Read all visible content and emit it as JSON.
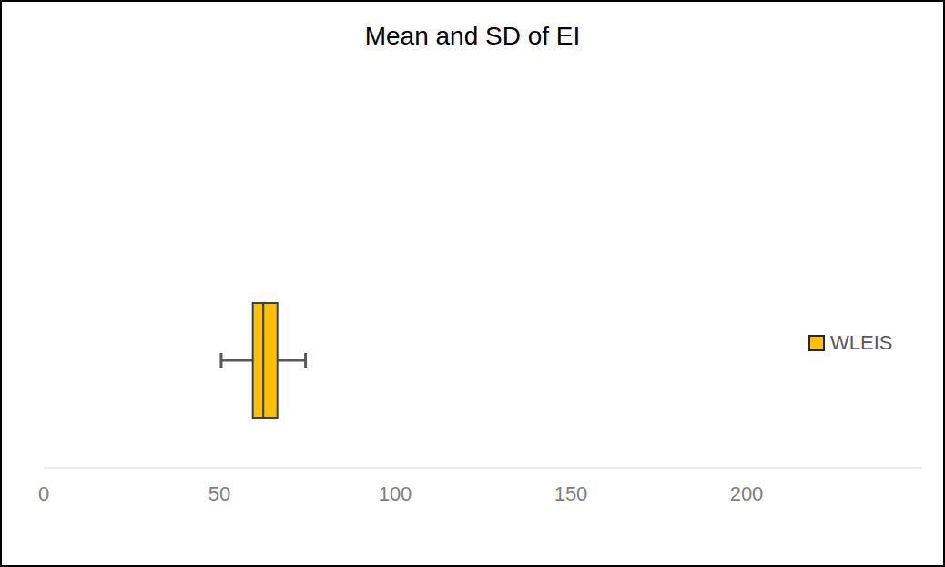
{
  "chart_data": {
    "type": "box",
    "title": "Mean and SD of EI",
    "series": [
      {
        "name": "WLEIS",
        "color": "#ffc000",
        "q1": 59.5,
        "median": 62.5,
        "q3": 66.5,
        "whisker_low": 50.5,
        "whisker_high": 74.5
      }
    ],
    "xlim": [
      0,
      250
    ],
    "xticks": [
      0,
      50,
      100,
      150,
      200
    ],
    "orientation": "horizontal",
    "legend": "right",
    "grid": false
  }
}
